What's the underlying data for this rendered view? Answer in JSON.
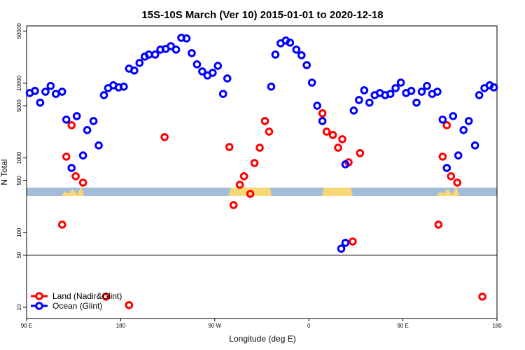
{
  "chart_data": {
    "type": "scatter",
    "title": "15S-10S March (Ver 10)   2015-01-01 to 2020-12-18",
    "x_label": "Longitude (deg E)",
    "y_label": "N Total",
    "log_y": true,
    "hline": 50,
    "xlim": [
      90,
      540
    ],
    "xticks": [
      {
        "value": 90,
        "label": "90 E"
      },
      {
        "value": 180,
        "label": "180"
      },
      {
        "value": 270,
        "label": "90 W"
      },
      {
        "value": 360,
        "label": "0"
      },
      {
        "value": 450,
        "label": "90 E"
      },
      {
        "value": 540,
        "label": "180"
      }
    ],
    "ylim": [
      7.08,
      58600
    ],
    "yticks": [
      10,
      50,
      100,
      500,
      1000,
      5000,
      10000,
      50000
    ],
    "legend": "bottom-left",
    "series": [
      {
        "name": "Land (Nadir&Glint)",
        "color": "#ff0000",
        "x": [
          124,
          128,
          133,
          137,
          144,
          166,
          188,
          222,
          284,
          288,
          294,
          298,
          304,
          308,
          313,
          318,
          322,
          373,
          377,
          383,
          388,
          392,
          398,
          402,
          409,
          484,
          488,
          492,
          496,
          502,
          526
        ],
        "values": [
          128,
          1040,
          2740,
          568,
          467,
          13.9,
          10.7,
          1900,
          1400,
          234,
          438,
          568,
          330,
          855,
          1370,
          3120,
          2250,
          3960,
          2250,
          2030,
          1370,
          1780,
          873,
          76,
          1160,
          128,
          1040,
          2740,
          568,
          467,
          13.9
        ]
      },
      {
        "name": "Ocean (Glint)",
        "color": "#0000ff",
        "x": [
          93,
          98,
          103,
          108,
          113,
          118,
          124,
          128,
          133,
          138,
          144,
          148,
          154,
          159,
          164,
          168,
          173,
          178,
          183,
          188,
          193,
          198,
          203,
          207,
          213,
          218,
          223,
          228,
          233,
          238,
          243,
          248,
          253,
          258,
          263,
          268,
          273,
          278,
          282,
          324,
          328,
          333,
          338,
          342,
          348,
          353,
          358,
          363,
          368,
          373,
          391,
          395,
          395,
          403,
          408,
          413,
          418,
          423,
          428,
          433,
          438,
          443,
          448,
          453,
          458,
          463,
          468,
          473,
          478,
          483,
          488,
          492,
          498,
          503,
          508,
          513,
          519,
          523,
          528,
          533,
          537
        ],
        "values": [
          7400,
          7900,
          5500,
          7700,
          9200,
          7200,
          7700,
          3260,
          734,
          3630,
          1080,
          2360,
          3120,
          1470,
          6930,
          8600,
          9400,
          8800,
          9000,
          15700,
          14800,
          18700,
          22700,
          24200,
          24200,
          28200,
          28800,
          31400,
          28200,
          40600,
          39800,
          25300,
          17900,
          14400,
          12700,
          13800,
          17100,
          7200,
          11600,
          9000,
          24200,
          34200,
          37300,
          35000,
          28200,
          23700,
          17500,
          10200,
          5000,
          3120,
          61,
          73,
          820,
          4310,
          5960,
          8050,
          5500,
          6930,
          7400,
          6930,
          7200,
          8600,
          10200,
          7400,
          7900,
          5500,
          7700,
          9200,
          7200,
          7700,
          3260,
          734,
          3630,
          1080,
          2360,
          3120,
          1470,
          6930,
          8600,
          9400,
          8800
        ]
      }
    ]
  }
}
